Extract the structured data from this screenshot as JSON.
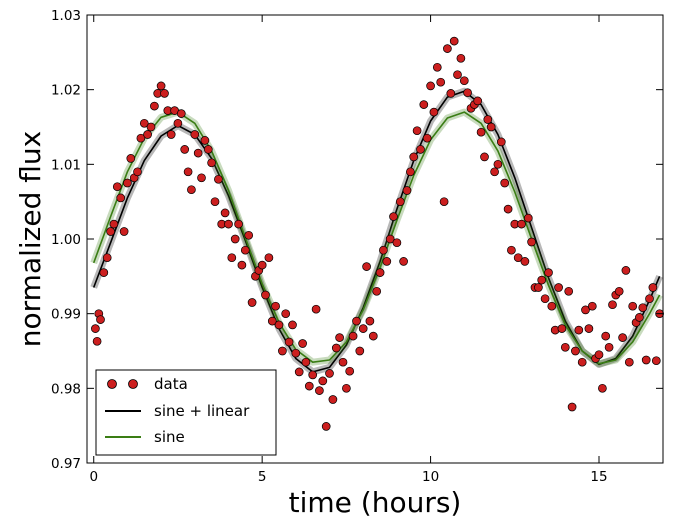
{
  "chart_data": {
    "type": "scatter",
    "title": "",
    "xlabel": "time (hours)",
    "ylabel": "normalized flux",
    "xlim": [
      -0.2,
      16.9
    ],
    "ylim": [
      0.97,
      1.03
    ],
    "xticks": [
      0,
      5,
      10,
      15
    ],
    "yticks": [
      0.97,
      0.98,
      0.99,
      1.0,
      1.01,
      1.02,
      1.03
    ],
    "xtick_labels": [
      "0",
      "5",
      "10",
      "15"
    ],
    "ytick_labels": [
      "0.97",
      "0.98",
      "0.99",
      "1.00",
      "1.01",
      "1.02",
      "1.03"
    ],
    "grid": false,
    "legend_position": "bottom-left",
    "legend": [
      {
        "label": "data",
        "kind": "marker",
        "color": "#cc1f1f"
      },
      {
        "label": "sine + linear",
        "kind": "line",
        "color": "#000000"
      },
      {
        "label": "sine",
        "kind": "line",
        "color": "#3a7d14"
      }
    ],
    "series": [
      {
        "name": "sine + linear",
        "kind": "line",
        "color": "#000000",
        "x": [
          0.0,
          0.5,
          1.0,
          1.5,
          2.0,
          2.5,
          3.0,
          3.5,
          4.0,
          4.5,
          5.0,
          5.5,
          6.0,
          6.5,
          7.0,
          7.5,
          8.0,
          8.5,
          9.0,
          9.5,
          10.0,
          10.5,
          11.0,
          11.5,
          12.0,
          12.5,
          13.0,
          13.5,
          14.0,
          14.5,
          15.0,
          15.5,
          16.0,
          16.5,
          16.8
        ],
        "y": [
          0.9935,
          0.9995,
          1.0055,
          1.0105,
          1.0138,
          1.0152,
          1.014,
          1.0108,
          1.0058,
          0.9998,
          0.9935,
          0.988,
          0.984,
          0.9822,
          0.9828,
          0.9858,
          0.9908,
          0.997,
          1.004,
          1.0105,
          1.0158,
          1.019,
          1.0198,
          1.018,
          1.014,
          1.0082,
          1.0015,
          0.9948,
          0.989,
          0.985,
          0.9832,
          0.984,
          0.987,
          0.9918,
          0.995
        ]
      },
      {
        "name": "sine",
        "kind": "line",
        "color": "#3a7d14",
        "x": [
          0.0,
          0.5,
          1.0,
          1.5,
          2.0,
          2.5,
          3.0,
          3.5,
          4.0,
          4.5,
          5.0,
          5.5,
          6.0,
          6.5,
          7.0,
          7.5,
          8.0,
          8.5,
          9.0,
          9.5,
          10.0,
          10.5,
          11.0,
          11.5,
          12.0,
          12.5,
          13.0,
          13.5,
          14.0,
          14.5,
          15.0,
          15.5,
          16.0,
          16.5,
          16.8
        ],
        "y": [
          0.9968,
          1.003,
          1.009,
          1.0135,
          1.0163,
          1.017,
          1.0155,
          1.0118,
          1.0065,
          1.0002,
          0.994,
          0.9888,
          0.9852,
          0.9835,
          0.9838,
          0.9862,
          0.9905,
          0.9962,
          1.0025,
          1.0085,
          1.0133,
          1.0162,
          1.017,
          1.0155,
          1.0118,
          1.0063,
          1.0,
          0.9938,
          0.9885,
          0.985,
          0.9833,
          0.9838,
          0.9862,
          0.99,
          0.9925
        ]
      },
      {
        "name": "data",
        "kind": "scatter",
        "color": "#cc1f1f",
        "x": [
          0.05,
          0.1,
          0.15,
          0.2,
          0.3,
          0.4,
          0.5,
          0.6,
          0.7,
          0.8,
          0.9,
          1.0,
          1.1,
          1.2,
          1.3,
          1.4,
          1.5,
          1.6,
          1.7,
          1.8,
          1.9,
          2.0,
          2.1,
          2.2,
          2.3,
          2.4,
          2.5,
          2.6,
          2.7,
          2.8,
          2.9,
          3.0,
          3.1,
          3.2,
          3.3,
          3.4,
          3.5,
          3.6,
          3.7,
          3.8,
          3.9,
          4.0,
          4.1,
          4.2,
          4.3,
          4.4,
          4.5,
          4.6,
          4.7,
          4.8,
          4.9,
          5.0,
          5.1,
          5.2,
          5.3,
          5.4,
          5.5,
          5.6,
          5.7,
          5.8,
          5.9,
          6.0,
          6.1,
          6.2,
          6.3,
          6.4,
          6.5,
          6.6,
          6.7,
          6.8,
          6.9,
          7.0,
          7.1,
          7.2,
          7.3,
          7.4,
          7.5,
          7.6,
          7.7,
          7.8,
          7.9,
          8.0,
          8.1,
          8.2,
          8.3,
          8.4,
          8.5,
          8.6,
          8.7,
          8.8,
          8.9,
          9.0,
          9.1,
          9.2,
          9.3,
          9.4,
          9.5,
          9.6,
          9.7,
          9.8,
          9.9,
          10.0,
          10.1,
          10.2,
          10.3,
          10.4,
          10.5,
          10.6,
          10.7,
          10.8,
          10.9,
          11.0,
          11.1,
          11.2,
          11.3,
          11.4,
          11.5,
          11.6,
          11.7,
          11.8,
          11.9,
          12.0,
          12.1,
          12.2,
          12.3,
          12.4,
          12.5,
          12.6,
          12.7,
          12.8,
          12.9,
          13.0,
          13.1,
          13.2,
          13.3,
          13.4,
          13.5,
          13.6,
          13.7,
          13.8,
          13.9,
          14.0,
          14.1,
          14.2,
          14.3,
          14.4,
          14.5,
          14.6,
          14.7,
          14.8,
          14.9,
          15.0,
          15.1,
          15.2,
          15.3,
          15.4,
          15.5,
          15.6,
          15.7,
          15.8,
          15.9,
          16.0,
          16.1,
          16.2,
          16.3,
          16.4,
          16.5,
          16.6,
          16.7,
          16.8
        ],
        "y": [
          0.988,
          0.9863,
          0.99,
          0.9892,
          0.9955,
          0.9975,
          1.001,
          1.002,
          1.007,
          1.0055,
          1.001,
          1.0075,
          1.0108,
          1.0082,
          1.009,
          1.0135,
          1.0155,
          1.014,
          1.015,
          1.0178,
          1.0195,
          1.0205,
          1.0195,
          1.0172,
          1.014,
          1.0172,
          1.0155,
          1.0168,
          1.012,
          1.009,
          1.0066,
          1.014,
          1.0115,
          1.0082,
          1.0132,
          1.012,
          1.0102,
          1.005,
          1.008,
          1.002,
          1.0035,
          1.002,
          0.9975,
          1.0,
          1.002,
          0.9965,
          0.9985,
          1.0005,
          0.9915,
          0.995,
          0.9958,
          0.9965,
          0.9925,
          0.9975,
          0.989,
          0.991,
          0.9885,
          0.985,
          0.99,
          0.9862,
          0.9885,
          0.9847,
          0.9822,
          0.986,
          0.9835,
          0.9803,
          0.9818,
          0.9906,
          0.9797,
          0.981,
          0.9749,
          0.982,
          0.9785,
          0.9854,
          0.9868,
          0.9835,
          0.98,
          0.9823,
          0.987,
          0.989,
          0.985,
          0.988,
          0.9963,
          0.989,
          0.987,
          0.993,
          0.9955,
          0.9985,
          0.997,
          1.0,
          1.003,
          0.9995,
          1.005,
          0.997,
          1.0065,
          1.009,
          1.011,
          1.0145,
          1.012,
          1.018,
          1.0135,
          1.0205,
          1.017,
          1.023,
          1.021,
          1.005,
          1.0255,
          1.0195,
          1.0265,
          1.022,
          1.0242,
          1.0212,
          1.0196,
          1.0175,
          1.018,
          1.0185,
          1.0143,
          1.011,
          1.016,
          1.015,
          1.009,
          1.01,
          1.013,
          1.0075,
          1.004,
          0.9985,
          1.002,
          0.9975,
          1.002,
          0.997,
          1.0028,
          0.9996,
          0.9935,
          0.9935,
          0.9945,
          0.992,
          0.9955,
          0.991,
          0.9878,
          0.9935,
          0.988,
          0.9855,
          0.993,
          0.9775,
          0.985,
          0.9878,
          0.9835,
          0.9905,
          0.988,
          0.991,
          0.984,
          0.9845,
          0.98,
          0.987,
          0.9855,
          0.9912,
          0.9925,
          0.993,
          0.9868,
          0.9958,
          0.9835,
          0.991,
          0.9888,
          0.9895,
          0.9908,
          0.9838,
          0.992,
          0.9935,
          0.9837,
          0.99
        ]
      }
    ]
  }
}
